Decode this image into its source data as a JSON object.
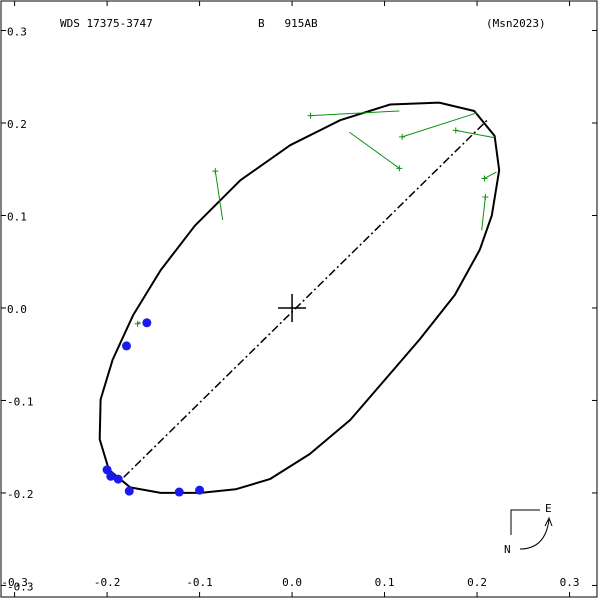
{
  "chart_data": {
    "type": "orbit",
    "title": "WDS 17375-3747",
    "subtitle": "B   915AB",
    "reference": "(Msn2023)",
    "xlim": [
      -0.3147,
      0.3297
    ],
    "ylim": [
      -0.3125,
      0.3319
    ],
    "xticks": [
      -0.3,
      -0.2,
      -0.1,
      {
        "value": 0,
        "label": "0.0"
      },
      0.1,
      0.2,
      0.3
    ],
    "yticks": [
      0.3,
      0.2,
      0.1,
      {
        "value": 0,
        "label": "0.0"
      },
      -0.1,
      -0.2,
      -0.3
    ],
    "orbit": {
      "color": "#000000",
      "x": [
        0.159,
        0.197,
        0.219,
        0.224,
        0.216,
        0.203,
        0.176,
        0.138,
        0.1,
        0.063,
        0.019,
        -0.024,
        -0.061,
        -0.099,
        -0.142,
        -0.175,
        -0.198,
        -0.208,
        -0.207,
        -0.194,
        -0.172,
        -0.142,
        -0.105,
        -0.056,
        -0.002,
        0.052,
        0.106,
        0.159
      ],
      "y": [
        0.222,
        0.213,
        0.186,
        0.149,
        0.1,
        0.063,
        0.014,
        -0.034,
        -0.078,
        -0.121,
        -0.158,
        -0.185,
        -0.196,
        -0.2,
        -0.2,
        -0.194,
        -0.175,
        -0.142,
        -0.099,
        -0.056,
        -0.008,
        0.041,
        0.089,
        0.138,
        0.176,
        0.203,
        0.22,
        0.222
      ]
    },
    "node_line": {
      "x": [
        -0.182,
        0.211
      ],
      "y": [
        -0.183,
        0.203
      ]
    },
    "measurements": {
      "color": "#1a1aee",
      "x": [
        -0.157,
        -0.179,
        -0.2,
        -0.196,
        -0.188,
        -0.176,
        -0.122,
        -0.1
      ],
      "y": [
        -0.016,
        -0.041,
        -0.175,
        -0.182,
        -0.185,
        -0.198,
        -0.199,
        -0.197
      ]
    },
    "residuals": {
      "color": "#109010",
      "x": [
        -0.167,
        -0.083,
        0.02,
        0.116,
        0.119,
        0.177,
        0.208,
        0.209
      ],
      "y": [
        -0.017,
        0.148,
        0.208,
        0.151,
        0.185,
        0.192,
        0.14,
        0.12
      ],
      "fit_x": [
        -0.164,
        -0.075,
        0.116,
        0.062,
        0.2,
        0.219,
        0.221,
        0.205
      ],
      "fit_y": [
        -0.015,
        0.095,
        0.213,
        0.19,
        0.211,
        0.184,
        0.147,
        0.084
      ]
    },
    "compass": {
      "north": "N",
      "east": "E"
    }
  }
}
